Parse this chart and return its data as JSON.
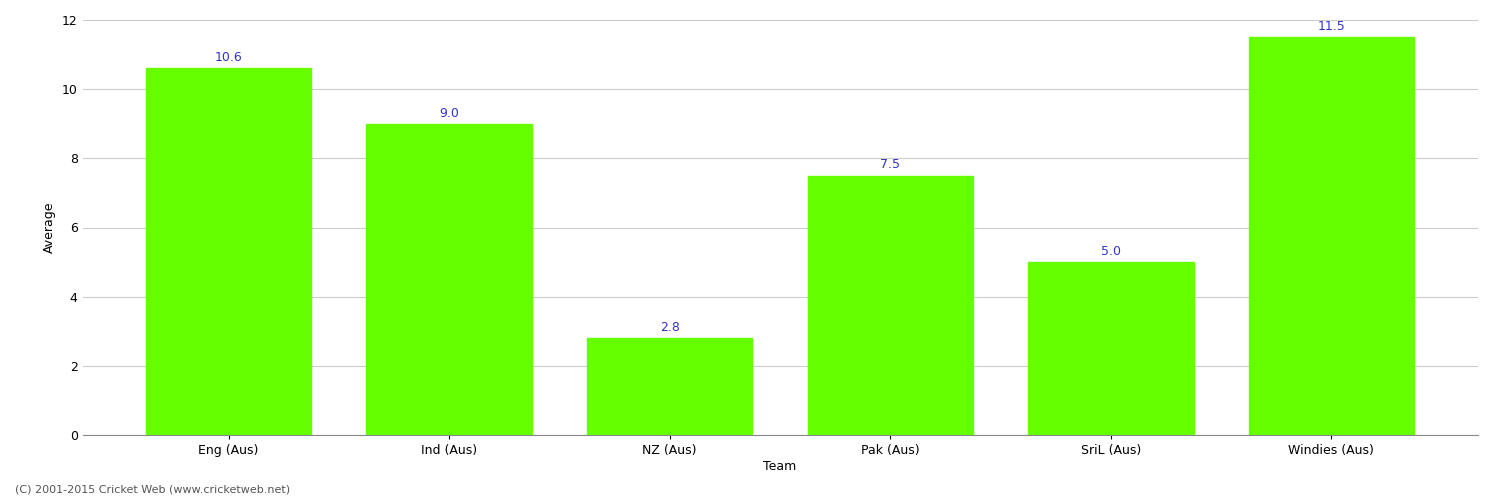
{
  "categories": [
    "Eng (Aus)",
    "Ind (Aus)",
    "NZ (Aus)",
    "Pak (Aus)",
    "SriL (Aus)",
    "Windies (Aus)"
  ],
  "values": [
    10.6,
    9.0,
    2.8,
    7.5,
    5.0,
    11.5
  ],
  "bar_color": "#66ff00",
  "bar_edge_color": "#66ff00",
  "xlabel": "Team",
  "ylabel": "Average",
  "ylim": [
    0,
    12
  ],
  "yticks": [
    0,
    2,
    4,
    6,
    8,
    10,
    12
  ],
  "label_color": "#3333cc",
  "label_fontsize": 9,
  "axis_fontsize": 9,
  "title_fontsize": 13,
  "background_color": "#ffffff",
  "grid_color": "#cccccc",
  "footer_text": "(C) 2001-2015 Cricket Web (www.cricketweb.net)",
  "footer_fontsize": 8,
  "footer_color": "#555555"
}
